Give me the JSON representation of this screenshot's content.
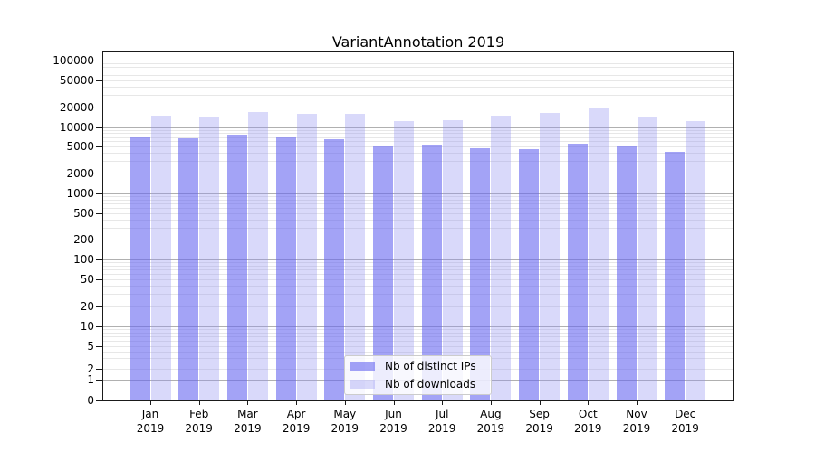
{
  "title": "VariantAnnotation 2019",
  "chart_data": {
    "type": "bar",
    "title": "VariantAnnotation 2019",
    "yscale": "symlog",
    "grid": true,
    "legend_position": "lower center",
    "categories": [
      "Jan 2019",
      "Feb 2019",
      "Mar 2019",
      "Apr 2019",
      "May 2019",
      "Jun 2019",
      "Jul 2019",
      "Aug 2019",
      "Sep 2019",
      "Oct 2019",
      "Nov 2019",
      "Dec 2019"
    ],
    "series": [
      {
        "name": "Nb of distinct IPs",
        "color": "rgba(102,102,240,0.6)",
        "values": [
          7100,
          6600,
          7700,
          6800,
          6400,
          5200,
          5300,
          4700,
          4500,
          5500,
          5200,
          4200
        ]
      },
      {
        "name": "Nb of downloads",
        "color": "rgba(145,145,240,0.35)",
        "values": [
          14700,
          14400,
          17000,
          15800,
          16000,
          12200,
          12600,
          14700,
          16500,
          18900,
          14600,
          12200
        ]
      }
    ],
    "yticks": [
      0,
      1,
      2,
      5,
      10,
      20,
      50,
      100,
      200,
      500,
      1000,
      2000,
      5000,
      10000,
      20000,
      50000,
      100000
    ],
    "ylim": [
      0,
      146000
    ],
    "xlabel": "",
    "ylabel": ""
  },
  "colors": {
    "bar_distinct_ips": "rgba(102,102,240,0.6)",
    "bar_downloads": "rgba(145,145,240,0.35)",
    "grid_major": "#b0b0b0",
    "grid_minor": "#e7e7e7",
    "spine": "#1a1a1a"
  }
}
